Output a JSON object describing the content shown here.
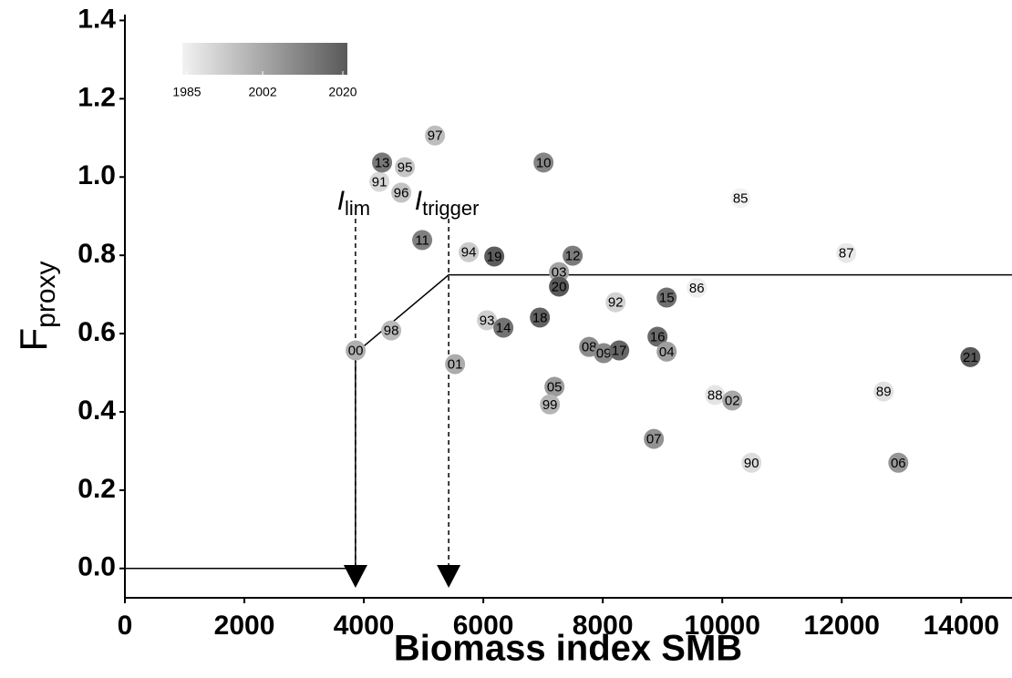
{
  "chart_data": {
    "type": "scatter",
    "x_label": "Biomass index SMB",
    "y_label": "F",
    "y_label_sub": "proxy",
    "xlim": [
      0,
      14850
    ],
    "ylim": [
      -0.075,
      1.415
    ],
    "xticks": [
      0,
      2000,
      4000,
      6000,
      8000,
      10000,
      12000,
      14000
    ],
    "yticks": [
      {
        "value": 0,
        "label": "0.0"
      },
      0.2,
      0.4,
      0.6,
      0.8,
      {
        "value": 1,
        "label": "1.0"
      },
      1.2,
      1.4
    ],
    "labels": [
      "00",
      "98",
      "91",
      "13",
      "95",
      "96",
      "97",
      "11",
      "94",
      "19",
      "10",
      "85",
      "87",
      "12",
      "03",
      "20",
      "92",
      "86",
      "15",
      "93",
      "14",
      "18",
      "01",
      "08",
      "09",
      "17",
      "16",
      "04",
      "21",
      "05",
      "99",
      "88",
      "02",
      "89",
      "07",
      "90",
      "06"
    ],
    "x": [
      3863,
      4458,
      4260,
      4305,
      4687,
      4626,
      5191,
      4977,
      5756,
      6183,
      7008,
      10305,
      12076,
      7496,
      7267,
      7267,
      8214,
      9573,
      9069,
      6061,
      6336,
      6947,
      5527,
      7771,
      8015,
      8275,
      8916,
      9069,
      14153,
      7191,
      7115,
      9878,
      10168,
      12702,
      8855,
      10489,
      12947
    ],
    "y": [
      0.557,
      0.608,
      0.988,
      1.037,
      1.025,
      0.96,
      1.106,
      0.839,
      0.808,
      0.797,
      1.037,
      0.946,
      0.806,
      0.799,
      0.757,
      0.72,
      0.68,
      0.717,
      0.692,
      0.634,
      0.615,
      0.641,
      0.522,
      0.566,
      0.55,
      0.557,
      0.592,
      0.554,
      0.54,
      0.464,
      0.419,
      0.443,
      0.429,
      0.452,
      0.331,
      0.27,
      0.27
    ],
    "colors": [
      "#b0b0b0",
      "#b9b9b9",
      "#d8d8d8",
      "#787878",
      "#c6c6c6",
      "#c2c2c2",
      "#bdbdbd",
      "#808080",
      "#cbcbcb",
      "#5d5d5d",
      "#858585",
      "#f2f2f2",
      "#e9e9e9",
      "#7c7c7c",
      "#a3a3a3",
      "#595959",
      "#d3d3d3",
      "#eeeeee",
      "#6f6f6f",
      "#cfcfcf",
      "#737373",
      "#626262",
      "#acacac",
      "#8d8d8d",
      "#898989",
      "#666666",
      "#6a6a6a",
      "#9f9f9f",
      "#595959",
      "#9b9b9b",
      "#b5b5b5",
      "#e5e5e5",
      "#a8a8a8",
      "#e1e1e1",
      "#929292",
      "#dcdcdc",
      "#969696"
    ],
    "colorbar": {
      "lim": [
        1985,
        2020
      ],
      "ticks": [
        1985,
        2002,
        2020
      ],
      "colors": [
        "#f2f2f2",
        "#595959"
      ]
    },
    "hcr": {
      "x": [
        0,
        3860,
        3860,
        5420,
        14850
      ],
      "y": [
        0,
        0,
        0.55,
        0.75,
        0.75
      ]
    },
    "ref_lines": [
      {
        "name": "I",
        "sub": "lim",
        "x": 3860
      },
      {
        "name": "I",
        "sub": "trigger",
        "x": 5420
      }
    ]
  }
}
